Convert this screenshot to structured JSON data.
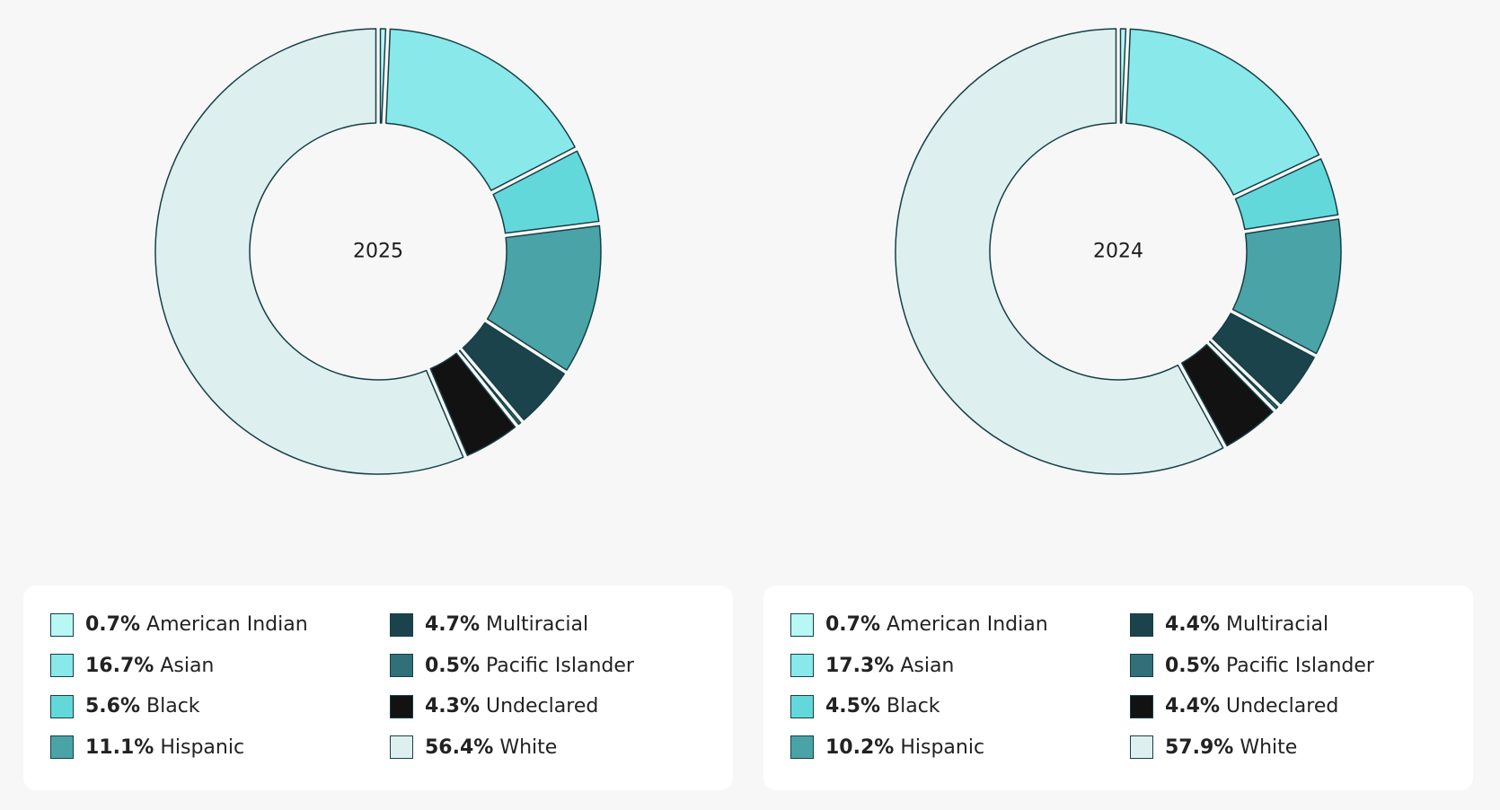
{
  "colors": {
    "American Indian": "#b9f7f4",
    "Asian": "#89e8ea",
    "Black": "#63d8da",
    "Hispanic": "#4aa3a7",
    "Multiracial": "#1b434b",
    "Pacific Islander": "#317078",
    "Undeclared": "#121212",
    "White": "#ddefef",
    "stroke": "#163f47",
    "background": "#f7f7f7"
  },
  "chart_data": [
    {
      "type": "pie",
      "title": "2025",
      "categories": [
        "American Indian",
        "Asian",
        "Black",
        "Hispanic",
        "Multiracial",
        "Pacific Islander",
        "Undeclared",
        "White"
      ],
      "values": [
        0.7,
        16.7,
        5.6,
        11.1,
        4.7,
        0.5,
        4.3,
        56.4
      ],
      "legend": [
        {
          "pct": "0.7%",
          "label": "American Indian"
        },
        {
          "pct": "16.7%",
          "label": "Asian"
        },
        {
          "pct": "5.6%",
          "label": "Black"
        },
        {
          "pct": "11.1%",
          "label": "Hispanic"
        },
        {
          "pct": "4.7%",
          "label": "Multiracial"
        },
        {
          "pct": "0.5%",
          "label": "Pacific Islander"
        },
        {
          "pct": "4.3%",
          "label": "Undeclared"
        },
        {
          "pct": "56.4%",
          "label": "White"
        }
      ]
    },
    {
      "type": "pie",
      "title": "2024",
      "categories": [
        "American Indian",
        "Asian",
        "Black",
        "Hispanic",
        "Multiracial",
        "Pacific Islander",
        "Undeclared",
        "White"
      ],
      "values": [
        0.7,
        17.3,
        4.5,
        10.2,
        4.4,
        0.5,
        4.4,
        57.9
      ],
      "legend": [
        {
          "pct": "0.7%",
          "label": "American Indian"
        },
        {
          "pct": "17.3%",
          "label": "Asian"
        },
        {
          "pct": "4.5%",
          "label": "Black"
        },
        {
          "pct": "10.2%",
          "label": "Hispanic"
        },
        {
          "pct": "4.4%",
          "label": "Multiracial"
        },
        {
          "pct": "0.5%",
          "label": "Pacific Islander"
        },
        {
          "pct": "4.4%",
          "label": "Undeclared"
        },
        {
          "pct": "57.9%",
          "label": "White"
        }
      ]
    }
  ]
}
